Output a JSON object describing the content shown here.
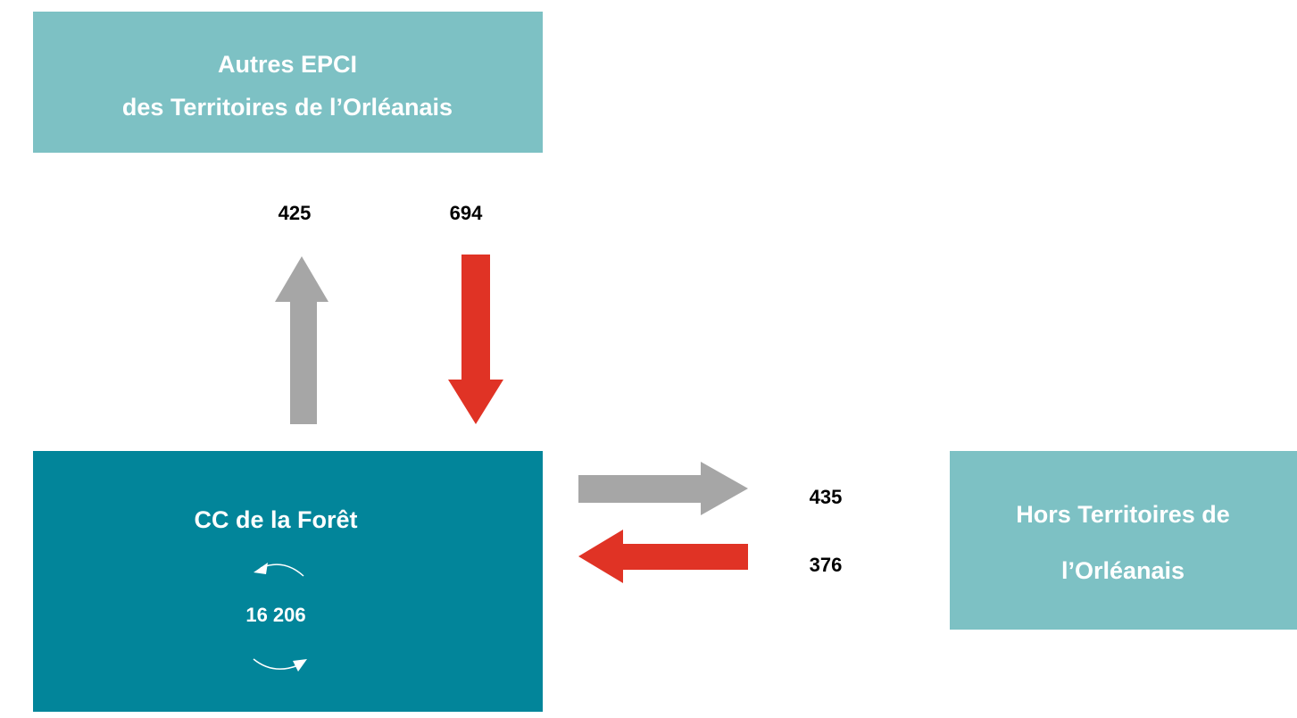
{
  "nodes": [
    {
      "label": [
        "Autres EPCI",
        "des Territoires de l’Orléanais"
      ]
    },
    {
      "label": "CC de la Forêt",
      "internal_flow": "16 206"
    },
    {
      "label": [
        "Hors Territoires de",
        "l’Orléanais"
      ]
    }
  ],
  "flows": {
    "to_autres_epci": "425",
    "from_autres_epci": "694",
    "to_hors_territoires": "435",
    "from_hors_territoires": "376"
  }
}
